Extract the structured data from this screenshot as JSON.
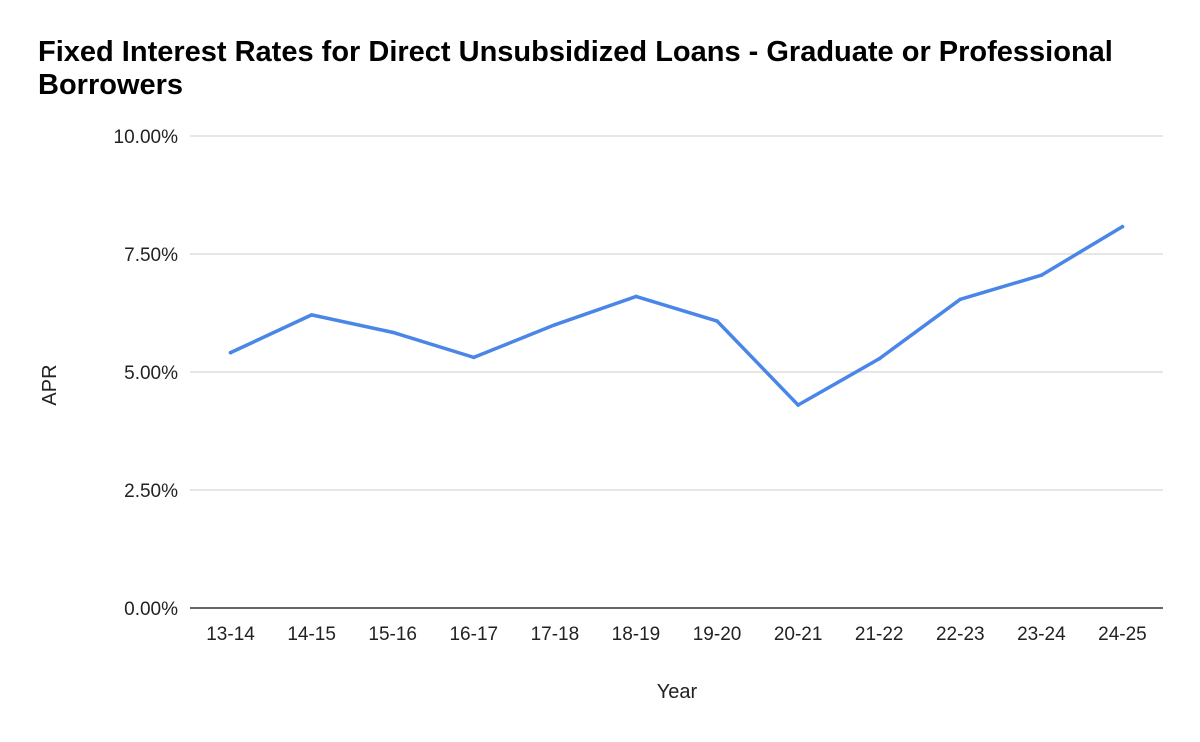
{
  "chart_data": {
    "type": "line",
    "title": "Fixed Interest Rates for Direct Unsubsidized Loans  - Graduate or Professional Borrowers",
    "xlabel": "Year",
    "ylabel": "APR",
    "categories": [
      "13-14",
      "14-15",
      "15-16",
      "16-17",
      "17-18",
      "18-19",
      "19-20",
      "20-21",
      "21-22",
      "22-23",
      "23-24",
      "24-25"
    ],
    "series": [
      {
        "values": [
          5.41,
          6.21,
          5.84,
          5.31,
          6.0,
          6.6,
          6.08,
          4.3,
          5.28,
          6.54,
          7.05,
          8.08
        ]
      }
    ],
    "ylim": [
      0,
      10
    ],
    "yticks": [
      "0.00%",
      "2.50%",
      "5.00%",
      "7.50%",
      "10.00%"
    ],
    "ytick_values": [
      0,
      2.5,
      5,
      7.5,
      10
    ],
    "grid": true,
    "legend": "none",
    "line_color": "#4a86e8",
    "grid_color": "#cccccc",
    "axis_color": "#333333"
  }
}
